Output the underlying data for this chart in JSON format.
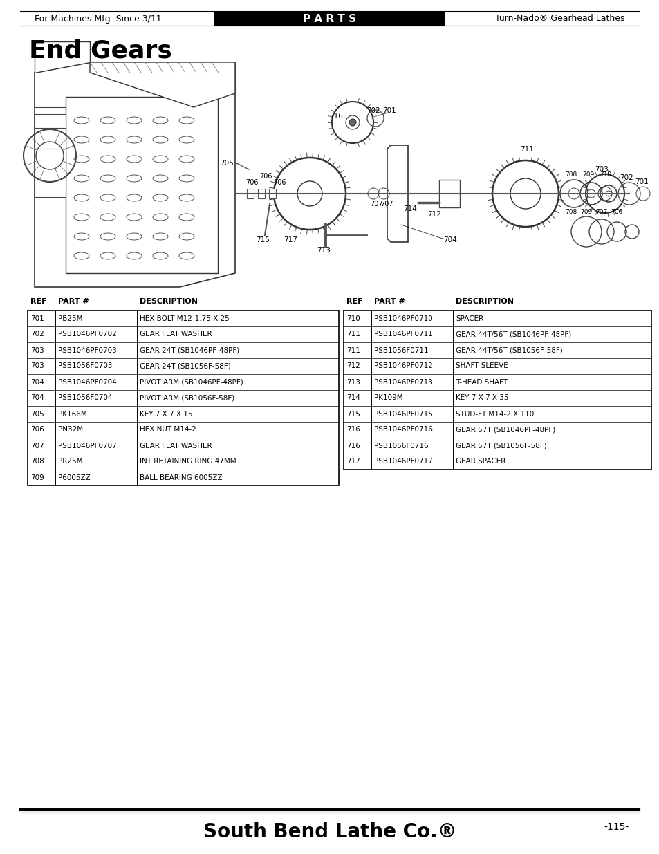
{
  "page_title": "End Gears",
  "header_left": "For Machines Mfg. Since 3/11",
  "header_center": "P A R T S",
  "header_right": "Turn-Nado® Gearhead Lathes",
  "footer_center": "South Bend Lathe Co.®",
  "footer_right": "-115-",
  "table_left": {
    "headers": [
      "REF",
      "PART #",
      "DESCRIPTION"
    ],
    "rows": [
      [
        "701",
        "PB25M",
        "HEX BOLT M12-1.75 X 25"
      ],
      [
        "702",
        "PSB1046PF0702",
        "GEAR FLAT WASHER"
      ],
      [
        "703",
        "PSB1046PF0703",
        "GEAR 24T (SB1046PF-48PF)"
      ],
      [
        "703",
        "PSB1056F0703",
        "GEAR 24T (SB1056F-58F)"
      ],
      [
        "704",
        "PSB1046PF0704",
        "PIVOT ARM (SB1046PF-48PF)"
      ],
      [
        "704",
        "PSB1056F0704",
        "PIVOT ARM (SB1056F-58F)"
      ],
      [
        "705",
        "PK166M",
        "KEY 7 X 7 X 15"
      ],
      [
        "706",
        "PN32M",
        "HEX NUT M14-2"
      ],
      [
        "707",
        "PSB1046PF0707",
        "GEAR FLAT WASHER"
      ],
      [
        "708",
        "PR25M",
        "INT RETAINING RING 47MM"
      ],
      [
        "709",
        "P6005ZZ",
        "BALL BEARING 6005ZZ"
      ]
    ]
  },
  "table_right": {
    "headers": [
      "REF",
      "PART #",
      "DESCRIPTION"
    ],
    "rows": [
      [
        "710",
        "PSB1046PF0710",
        "SPACER"
      ],
      [
        "711",
        "PSB1046PF0711",
        "GEAR 44T/56T (SB1046PF-48PF)"
      ],
      [
        "711",
        "PSB1056F0711",
        "GEAR 44T/56T (SB1056F-58F)"
      ],
      [
        "712",
        "PSB1046PF0712",
        "SHAFT SLEEVE"
      ],
      [
        "713",
        "PSB1046PF0713",
        "T-HEAD SHAFT"
      ],
      [
        "714",
        "PK109M",
        "KEY 7 X 7 X 35"
      ],
      [
        "715",
        "PSB1046PF0715",
        "STUD-FT M14-2 X 110"
      ],
      [
        "716",
        "PSB1046PF0716",
        "GEAR 57T (SB1046PF-48PF)"
      ],
      [
        "716",
        "PSB1056F0716",
        "GEAR 57T (SB1056F-58F)"
      ],
      [
        "717",
        "PSB1046PF0717",
        "GEAR SPACER"
      ]
    ]
  },
  "bg_color": "#ffffff",
  "table_border_color": "#000000",
  "text_color": "#000000"
}
